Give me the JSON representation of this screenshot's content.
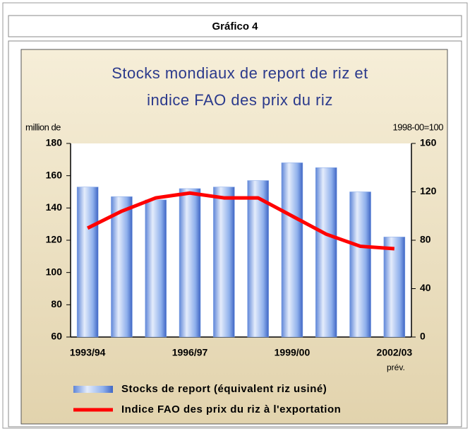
{
  "header": "Gráfico 4",
  "chart_data": {
    "type": "bar-line",
    "title": [
      "Stocks mondiaux de report de riz et",
      "indice FAO des prix du riz"
    ],
    "y_label": "million de",
    "y2_label": "1998-00=100",
    "annotations": [
      "prév."
    ],
    "categories": [
      "1993/94",
      null,
      null,
      "1996/97",
      null,
      null,
      "1999/00",
      null,
      null,
      "2002/03"
    ],
    "series": [
      {
        "name": "Stocks de report (équivalent riz usiné)",
        "type": "bar",
        "axis": "y",
        "color": "#7fa3e6",
        "values": [
          153,
          147,
          145,
          152,
          153,
          157,
          168,
          165,
          150,
          122
        ]
      },
      {
        "name": "Indice FAO des prix du riz à l'exportation",
        "type": "line",
        "axis": "y2",
        "color": "#ff0000",
        "values": [
          90,
          104,
          115,
          119,
          115,
          115,
          100,
          85,
          75,
          73
        ]
      }
    ],
    "ylim": [
      60,
      180
    ],
    "yticks": [
      60,
      80,
      100,
      120,
      140,
      160,
      180
    ],
    "y2lim": [
      0,
      160
    ],
    "y2ticks": [
      0,
      40,
      80,
      120,
      160
    ]
  }
}
